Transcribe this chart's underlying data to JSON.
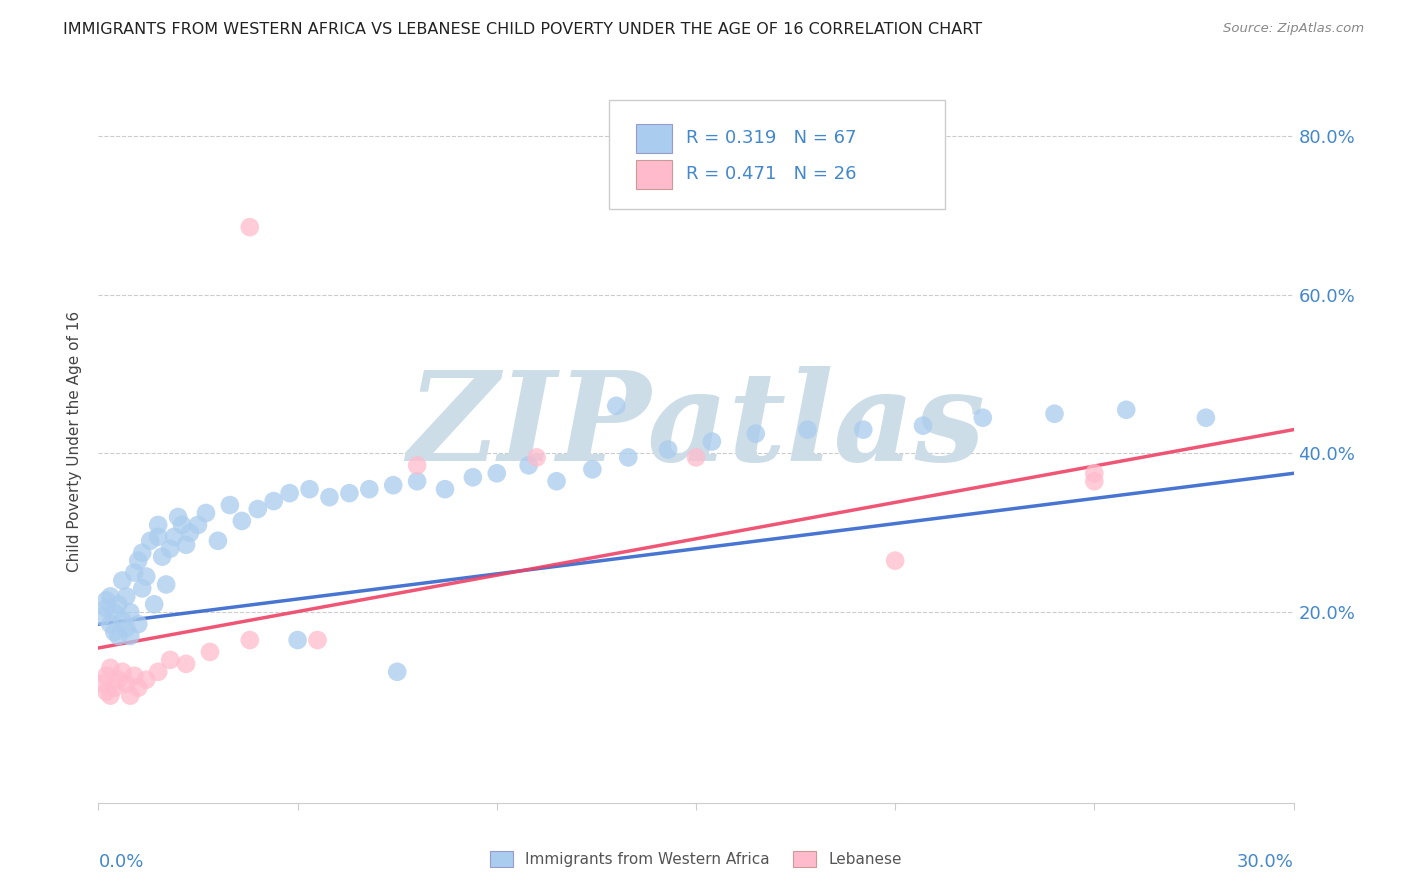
{
  "title": "IMMIGRANTS FROM WESTERN AFRICA VS LEBANESE CHILD POVERTY UNDER THE AGE OF 16 CORRELATION CHART",
  "source": "Source: ZipAtlas.com",
  "ylabel": "Child Poverty Under the Age of 16",
  "xlim": [
    0.0,
    0.3
  ],
  "ylim": [
    -0.04,
    0.87
  ],
  "ytick_vals": [
    0.2,
    0.4,
    0.6,
    0.8
  ],
  "ytick_labels": [
    "20.0%",
    "40.0%",
    "60.0%",
    "80.0%"
  ],
  "x_left_label": "0.0%",
  "x_right_label": "30.0%",
  "blue_r": "0.319",
  "blue_n": "67",
  "pink_r": "0.471",
  "pink_n": "26",
  "blue_dot_color": "#aaccee",
  "pink_dot_color": "#ffbbcc",
  "blue_line_color": "#3366cc",
  "pink_line_color": "#ee4466",
  "blue_line_x0": 0.0,
  "blue_line_y0": 0.185,
  "blue_line_x1": 0.3,
  "blue_line_y1": 0.375,
  "pink_line_x0": 0.0,
  "pink_line_y0": 0.155,
  "pink_line_x1": 0.3,
  "pink_line_y1": 0.43,
  "watermark_text": "ZIPatlas",
  "watermark_color": "#ccdde8",
  "legend_label_blue": "Immigrants from Western Africa",
  "legend_label_pink": "Lebanese",
  "tick_color": "#4488cc",
  "label_color": "#444444",
  "grid_color": "#cccccc",
  "blue_x": [
    0.001,
    0.002,
    0.002,
    0.003,
    0.003,
    0.004,
    0.004,
    0.005,
    0.005,
    0.006,
    0.006,
    0.007,
    0.007,
    0.008,
    0.008,
    0.009,
    0.01,
    0.01,
    0.011,
    0.011,
    0.012,
    0.013,
    0.014,
    0.015,
    0.015,
    0.016,
    0.017,
    0.018,
    0.019,
    0.02,
    0.021,
    0.022,
    0.023,
    0.025,
    0.027,
    0.03,
    0.033,
    0.036,
    0.04,
    0.044,
    0.048,
    0.053,
    0.058,
    0.063,
    0.068,
    0.074,
    0.08,
    0.087,
    0.094,
    0.1,
    0.108,
    0.115,
    0.124,
    0.133,
    0.143,
    0.154,
    0.165,
    0.178,
    0.192,
    0.207,
    0.222,
    0.24,
    0.258,
    0.278,
    0.13,
    0.075,
    0.05
  ],
  "blue_y": [
    0.195,
    0.205,
    0.215,
    0.185,
    0.22,
    0.175,
    0.2,
    0.17,
    0.21,
    0.19,
    0.24,
    0.18,
    0.22,
    0.17,
    0.2,
    0.25,
    0.185,
    0.265,
    0.23,
    0.275,
    0.245,
    0.29,
    0.21,
    0.295,
    0.31,
    0.27,
    0.235,
    0.28,
    0.295,
    0.32,
    0.31,
    0.285,
    0.3,
    0.31,
    0.325,
    0.29,
    0.335,
    0.315,
    0.33,
    0.34,
    0.35,
    0.355,
    0.345,
    0.35,
    0.355,
    0.36,
    0.365,
    0.355,
    0.37,
    0.375,
    0.385,
    0.365,
    0.38,
    0.395,
    0.405,
    0.415,
    0.425,
    0.43,
    0.43,
    0.435,
    0.445,
    0.45,
    0.455,
    0.445,
    0.46,
    0.125,
    0.165
  ],
  "pink_x": [
    0.001,
    0.002,
    0.002,
    0.003,
    0.003,
    0.004,
    0.005,
    0.006,
    0.007,
    0.008,
    0.009,
    0.01,
    0.012,
    0.015,
    0.018,
    0.022,
    0.028,
    0.038,
    0.055,
    0.08,
    0.11,
    0.15,
    0.2,
    0.25,
    0.25,
    0.038
  ],
  "pink_y": [
    0.11,
    0.12,
    0.1,
    0.095,
    0.13,
    0.105,
    0.115,
    0.125,
    0.11,
    0.095,
    0.12,
    0.105,
    0.115,
    0.125,
    0.14,
    0.135,
    0.15,
    0.165,
    0.165,
    0.385,
    0.395,
    0.395,
    0.265,
    0.375,
    0.365,
    0.685
  ]
}
